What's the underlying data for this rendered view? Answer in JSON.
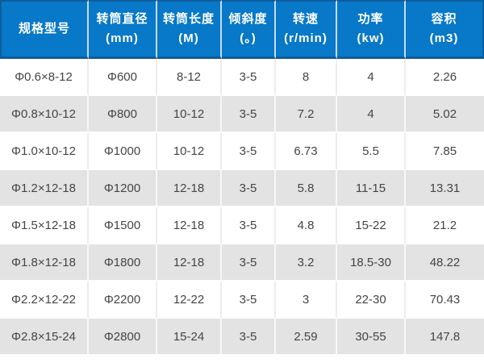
{
  "chart_data": {
    "type": "table",
    "title": "",
    "columns": [
      {
        "line1": "规格型号",
        "line2": ""
      },
      {
        "line1": "转筒直径",
        "line2": "(mm)"
      },
      {
        "line1": "转筒长度",
        "line2": "(M)"
      },
      {
        "line1": "倾斜度",
        "line2": "(。)"
      },
      {
        "line1": "转速",
        "line2": "(r/min)"
      },
      {
        "line1": "功率",
        "line2": "(kw)"
      },
      {
        "line1": "容积",
        "line2": "(m3)"
      }
    ],
    "rows": [
      [
        "Φ0.6×8-12",
        "Φ600",
        "8-12",
        "3-5",
        "8",
        "4",
        "2.26"
      ],
      [
        "Φ0.8×10-12",
        "Φ800",
        "10-12",
        "3-5",
        "7.2",
        "4",
        "5.02"
      ],
      [
        "Φ1.0×10-12",
        "Φ1000",
        "10-12",
        "3-5",
        "6.73",
        "5.5",
        "7.85"
      ],
      [
        "Φ1.2×12-18",
        "Φ1200",
        "12-18",
        "3-5",
        "5.8",
        "11-15",
        "13.31"
      ],
      [
        "Φ1.5×12-18",
        "Φ1500",
        "12-18",
        "3-5",
        "4.8",
        "15-22",
        "21.2"
      ],
      [
        "Φ1.8×12-18",
        "Φ1800",
        "12-18",
        "3-5",
        "3.2",
        "18.5-30",
        "48.22"
      ],
      [
        "Φ2.2×12-22",
        "Φ2200",
        "12-22",
        "3-5",
        "3",
        "22-30",
        "70.43"
      ],
      [
        "Φ2.8×15-24",
        "Φ2800",
        "15-24",
        "3-5",
        "2.59",
        "30-55",
        "147.8"
      ]
    ],
    "colors": {
      "header_bg": "#0878c8",
      "header_border": "#0d5c9b",
      "header_separator": "#c9dcea",
      "header_text": "#ffffff",
      "row_alt_bg": "#e3e3e3",
      "row_bg": "#ffffff",
      "row_text": "#454545"
    }
  }
}
